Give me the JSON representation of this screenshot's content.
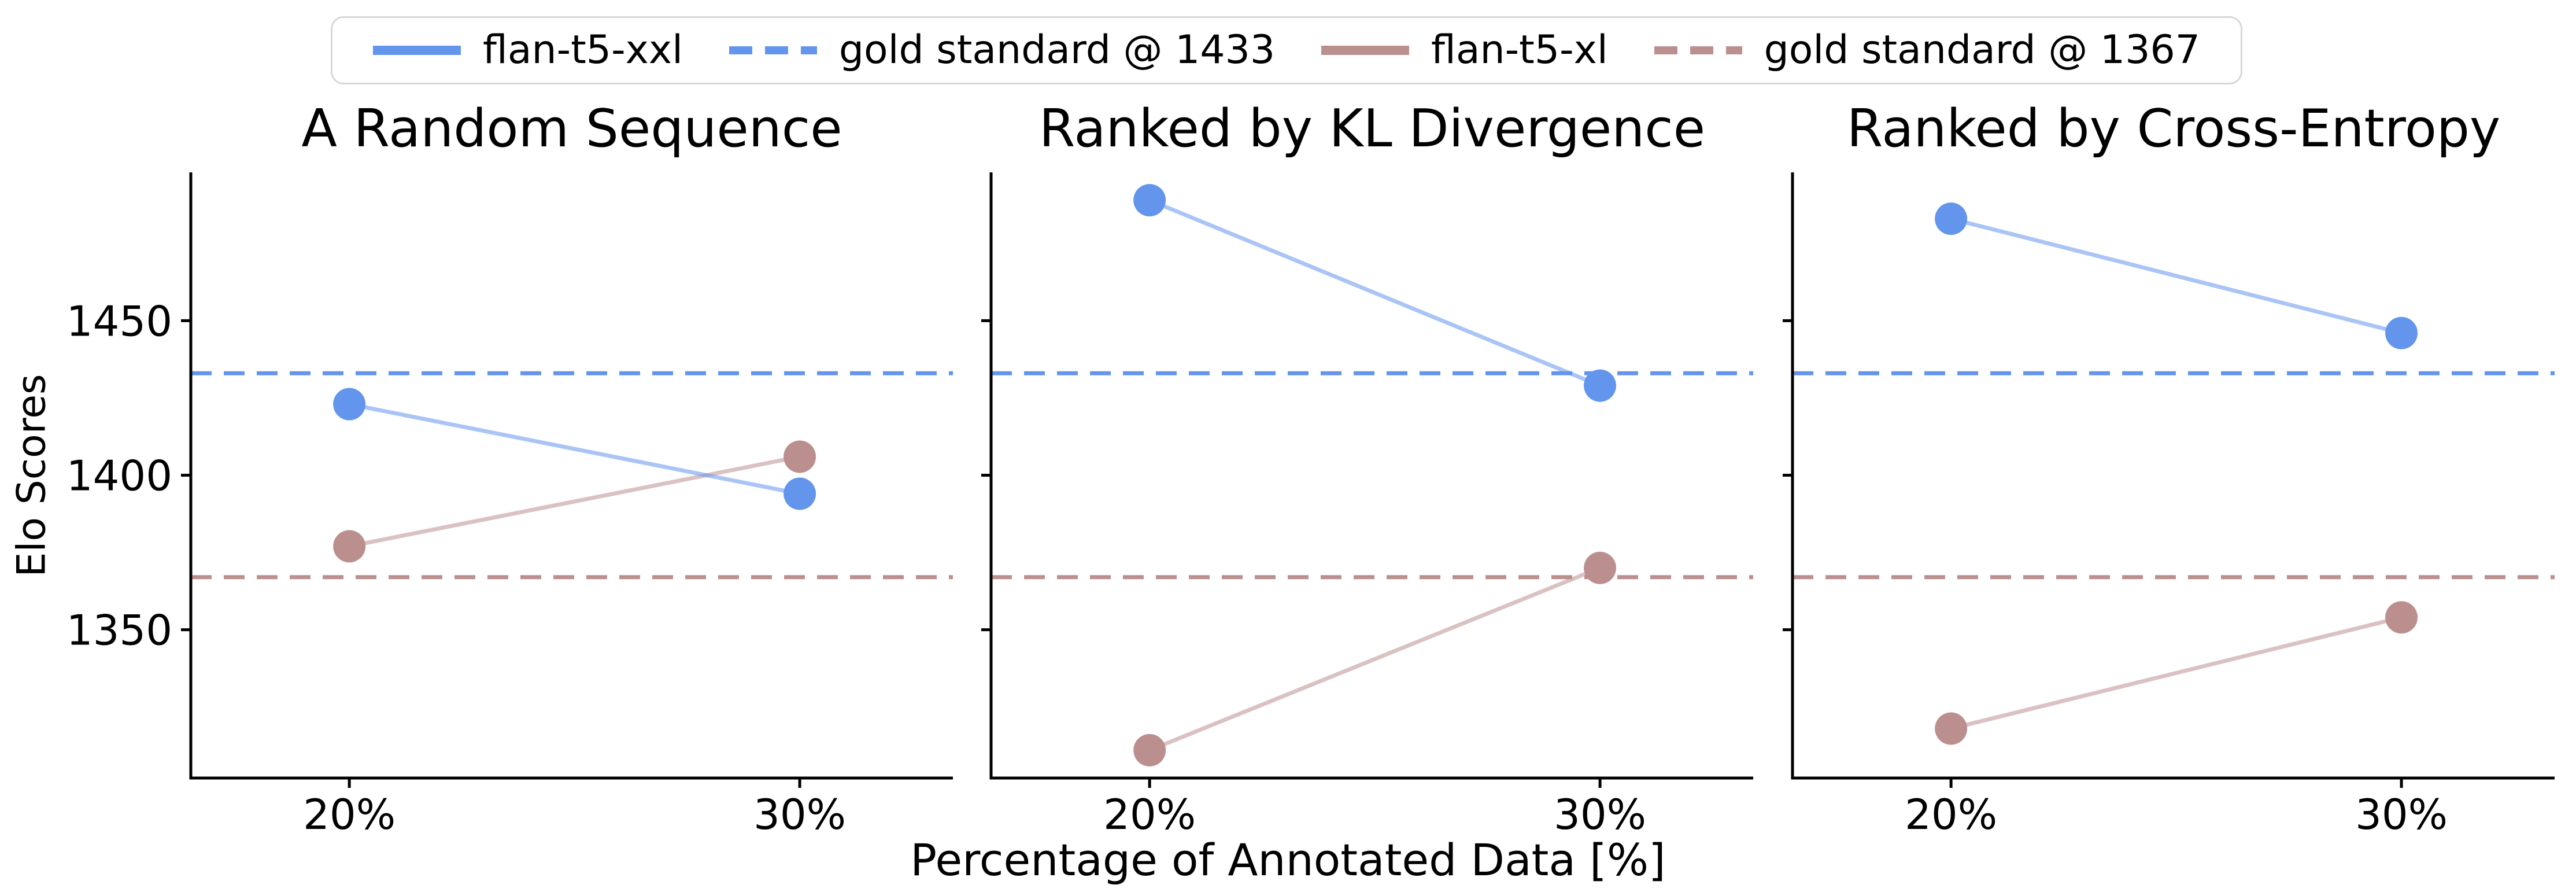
{
  "figure": {
    "background": "#ffffff",
    "text_color": "#000000"
  },
  "legend": {
    "items": [
      {
        "label": "flan-t5-xxl",
        "style": "solid",
        "color": "#6495ED"
      },
      {
        "label": "gold standard @ 1433",
        "style": "dashed",
        "color": "#6495ED"
      },
      {
        "label": "flan-t5-xl",
        "style": "solid",
        "color": "#BC8F8F"
      },
      {
        "label": "gold standard @ 1367",
        "style": "dashed",
        "color": "#BC8F8F"
      }
    ]
  },
  "chart_data": {
    "type": "line",
    "categories": [
      "20%",
      "30%"
    ],
    "xlabel": "Percentage of Annotated Data [%]",
    "ylabel": "Elo Scores",
    "ylim": [
      1302,
      1498
    ],
    "yticks": [
      1350,
      1400,
      1450
    ],
    "grid": false,
    "legend_position": "top",
    "hlines": [
      {
        "name": "gold standard @ 1433",
        "y": 1433,
        "color": "#6495ED",
        "style": "dashed"
      },
      {
        "name": "gold standard @ 1367",
        "y": 1367,
        "color": "#BC8F8F",
        "style": "dashed"
      }
    ],
    "panels": [
      {
        "title": "A Random Sequence",
        "series": [
          {
            "name": "flan-t5-xl",
            "color": "#BC8F8F",
            "values": [
              1377,
              1406
            ]
          },
          {
            "name": "flan-t5-xxl",
            "color": "#6495ED",
            "values": [
              1423,
              1394
            ]
          }
        ]
      },
      {
        "title": "Ranked by KL Divergence",
        "series": [
          {
            "name": "flan-t5-xl",
            "color": "#BC8F8F",
            "values": [
              1311,
              1370
            ]
          },
          {
            "name": "flan-t5-xxl",
            "color": "#6495ED",
            "values": [
              1489,
              1429
            ]
          }
        ]
      },
      {
        "title": "Ranked by Cross-Entropy",
        "series": [
          {
            "name": "flan-t5-xl",
            "color": "#BC8F8F",
            "values": [
              1318,
              1354
            ]
          },
          {
            "name": "flan-t5-xxl",
            "color": "#6495ED",
            "values": [
              1483,
              1446
            ]
          }
        ]
      }
    ]
  }
}
